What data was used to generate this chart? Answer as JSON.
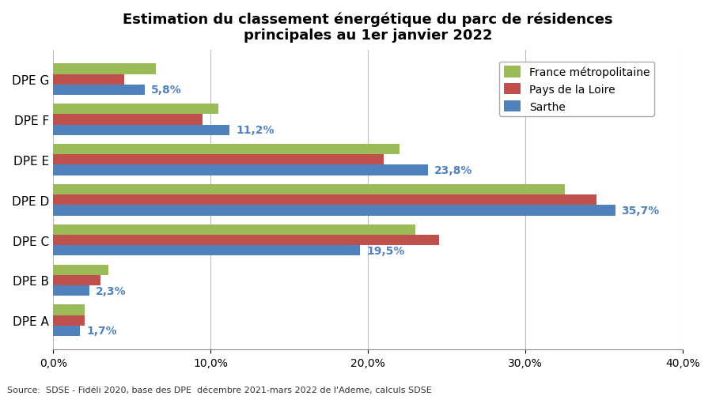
{
  "title": "Estimation du classement énergétique du parc de résidences\nprincipales au 1er janvier 2022",
  "categories": [
    "DPE A",
    "DPE B",
    "DPE C",
    "DPE D",
    "DPE E",
    "DPE F",
    "DPE G"
  ],
  "series": {
    "France métropolitaine": [
      2.0,
      3.5,
      23.0,
      32.5,
      22.0,
      10.5,
      6.5
    ],
    "Pays de la Loire": [
      2.0,
      3.0,
      24.5,
      34.5,
      21.0,
      9.5,
      4.5
    ],
    "Sarthe": [
      1.7,
      2.3,
      19.5,
      35.7,
      23.8,
      11.2,
      5.8
    ]
  },
  "sarthe_labels": [
    "1,7%",
    "2,3%",
    "19,5%",
    "35,7%",
    "23,8%",
    "11,2%",
    "5,8%"
  ],
  "colors": {
    "France métropolitaine": "#9BBB59",
    "Pays de la Loire": "#C0504D",
    "Sarthe": "#4F81BD"
  },
  "xlim": [
    0,
    40
  ],
  "xtick_vals": [
    0,
    10,
    20,
    30,
    40
  ],
  "xtick_labels": [
    "0,0%",
    "10,0%",
    "20,0%",
    "30,0%",
    "40,0%"
  ],
  "source_text": "Source:  SDSE - Fidéli 2020, base des DPE  décembre 2021-mars 2022 de l'Ademe, calculs SDSE",
  "background_color": "#FFFFFF",
  "label_color": "#4F81BD",
  "bar_height": 0.26
}
